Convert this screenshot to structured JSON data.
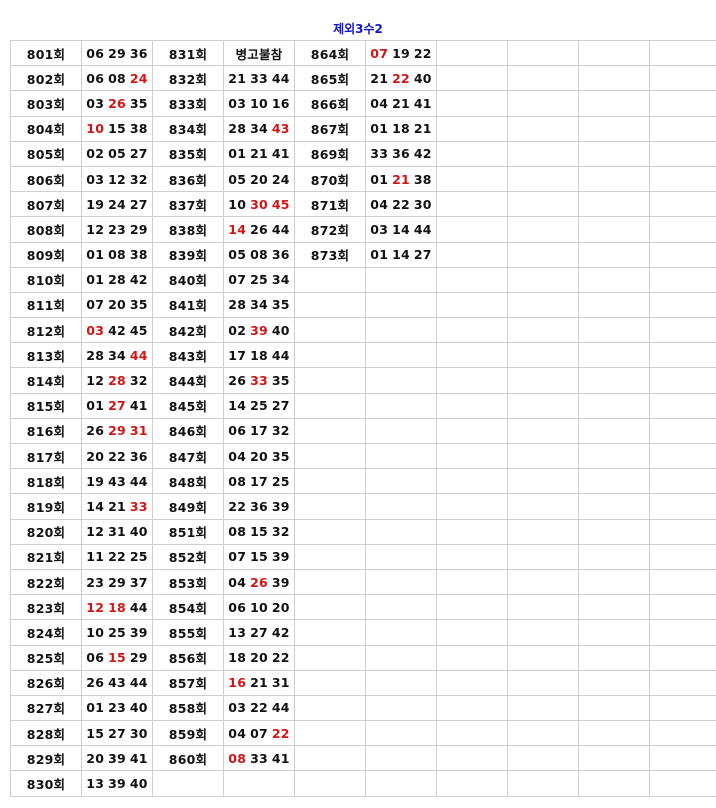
{
  "title": "제외3수2",
  "colors": {
    "highlight": "#d41414",
    "title": "#1515c8",
    "grid": "#cfcfcf"
  },
  "groups": [
    [
      {
        "round": "801회",
        "nums": [
          "06",
          "29",
          "36"
        ],
        "hot": []
      },
      {
        "round": "802회",
        "nums": [
          "06",
          "08",
          "24"
        ],
        "hot": [
          2
        ]
      },
      {
        "round": "803회",
        "nums": [
          "03",
          "26",
          "35"
        ],
        "hot": [
          1
        ]
      },
      {
        "round": "804회",
        "nums": [
          "10",
          "15",
          "38"
        ],
        "hot": [
          0
        ]
      },
      {
        "round": "805회",
        "nums": [
          "02",
          "05",
          "27"
        ],
        "hot": []
      },
      {
        "round": "806회",
        "nums": [
          "03",
          "12",
          "32"
        ],
        "hot": []
      },
      {
        "round": "807회",
        "nums": [
          "19",
          "24",
          "27"
        ],
        "hot": []
      },
      {
        "round": "808회",
        "nums": [
          "12",
          "23",
          "29"
        ],
        "hot": []
      },
      {
        "round": "809회",
        "nums": [
          "01",
          "08",
          "38"
        ],
        "hot": []
      },
      {
        "round": "810회",
        "nums": [
          "01",
          "28",
          "42"
        ],
        "hot": []
      },
      {
        "round": "811회",
        "nums": [
          "07",
          "20",
          "35"
        ],
        "hot": []
      },
      {
        "round": "812회",
        "nums": [
          "03",
          "42",
          "45"
        ],
        "hot": [
          0
        ]
      },
      {
        "round": "813회",
        "nums": [
          "28",
          "34",
          "44"
        ],
        "hot": [
          2
        ]
      },
      {
        "round": "814회",
        "nums": [
          "12",
          "28",
          "32"
        ],
        "hot": [
          1
        ]
      },
      {
        "round": "815회",
        "nums": [
          "01",
          "27",
          "41"
        ],
        "hot": [
          1
        ]
      },
      {
        "round": "816회",
        "nums": [
          "26",
          "29",
          "31"
        ],
        "hot": [
          1,
          2
        ]
      },
      {
        "round": "817회",
        "nums": [
          "20",
          "22",
          "36"
        ],
        "hot": []
      },
      {
        "round": "818회",
        "nums": [
          "19",
          "43",
          "44"
        ],
        "hot": []
      },
      {
        "round": "819회",
        "nums": [
          "14",
          "21",
          "33"
        ],
        "hot": [
          2
        ]
      },
      {
        "round": "820회",
        "nums": [
          "12",
          "31",
          "40"
        ],
        "hot": []
      },
      {
        "round": "821회",
        "nums": [
          "11",
          "22",
          "25"
        ],
        "hot": []
      },
      {
        "round": "822회",
        "nums": [
          "23",
          "29",
          "37"
        ],
        "hot": []
      },
      {
        "round": "823회",
        "nums": [
          "12",
          "18",
          "44"
        ],
        "hot": [
          0,
          1
        ]
      },
      {
        "round": "824회",
        "nums": [
          "10",
          "25",
          "39"
        ],
        "hot": []
      },
      {
        "round": "825회",
        "nums": [
          "06",
          "15",
          "29"
        ],
        "hot": [
          1
        ]
      },
      {
        "round": "826회",
        "nums": [
          "26",
          "43",
          "44"
        ],
        "hot": []
      },
      {
        "round": "827회",
        "nums": [
          "01",
          "23",
          "40"
        ],
        "hot": []
      },
      {
        "round": "828회",
        "nums": [
          "15",
          "27",
          "30"
        ],
        "hot": []
      },
      {
        "round": "829회",
        "nums": [
          "20",
          "39",
          "41"
        ],
        "hot": []
      },
      {
        "round": "830회",
        "nums": [
          "13",
          "39",
          "40"
        ],
        "hot": []
      }
    ],
    [
      {
        "round": "831회",
        "nums": [
          "병고불참"
        ],
        "hot": []
      },
      {
        "round": "832회",
        "nums": [
          "21",
          "33",
          "44"
        ],
        "hot": []
      },
      {
        "round": "833회",
        "nums": [
          "03",
          "10",
          "16"
        ],
        "hot": []
      },
      {
        "round": "834회",
        "nums": [
          "28",
          "34",
          "43"
        ],
        "hot": [
          2
        ]
      },
      {
        "round": "835회",
        "nums": [
          "01",
          "21",
          "41"
        ],
        "hot": []
      },
      {
        "round": "836회",
        "nums": [
          "05",
          "20",
          "24"
        ],
        "hot": []
      },
      {
        "round": "837회",
        "nums": [
          "10",
          "30",
          "45"
        ],
        "hot": [
          1,
          2
        ]
      },
      {
        "round": "838회",
        "nums": [
          "14",
          "26",
          "44"
        ],
        "hot": [
          0
        ]
      },
      {
        "round": "839회",
        "nums": [
          "05",
          "08",
          "36"
        ],
        "hot": []
      },
      {
        "round": "840회",
        "nums": [
          "07",
          "25",
          "34"
        ],
        "hot": []
      },
      {
        "round": "841회",
        "nums": [
          "28",
          "34",
          "35"
        ],
        "hot": []
      },
      {
        "round": "842회",
        "nums": [
          "02",
          "39",
          "40"
        ],
        "hot": [
          1
        ]
      },
      {
        "round": "843회",
        "nums": [
          "17",
          "18",
          "44"
        ],
        "hot": []
      },
      {
        "round": "844회",
        "nums": [
          "26",
          "33",
          "35"
        ],
        "hot": [
          1
        ]
      },
      {
        "round": "845회",
        "nums": [
          "14",
          "25",
          "27"
        ],
        "hot": []
      },
      {
        "round": "846회",
        "nums": [
          "06",
          "17",
          "32"
        ],
        "hot": []
      },
      {
        "round": "847회",
        "nums": [
          "04",
          "20",
          "35"
        ],
        "hot": []
      },
      {
        "round": "848회",
        "nums": [
          "08",
          "17",
          "25"
        ],
        "hot": []
      },
      {
        "round": "849회",
        "nums": [
          "22",
          "36",
          "39"
        ],
        "hot": []
      },
      {
        "round": "851회",
        "nums": [
          "08",
          "15",
          "32"
        ],
        "hot": []
      },
      {
        "round": "852회",
        "nums": [
          "07",
          "15",
          "39"
        ],
        "hot": []
      },
      {
        "round": "853회",
        "nums": [
          "04",
          "26",
          "39"
        ],
        "hot": [
          1
        ]
      },
      {
        "round": "854회",
        "nums": [
          "06",
          "10",
          "20"
        ],
        "hot": []
      },
      {
        "round": "855회",
        "nums": [
          "13",
          "27",
          "42"
        ],
        "hot": []
      },
      {
        "round": "856회",
        "nums": [
          "18",
          "20",
          "22"
        ],
        "hot": []
      },
      {
        "round": "857회",
        "nums": [
          "16",
          "21",
          "31"
        ],
        "hot": [
          0
        ]
      },
      {
        "round": "858회",
        "nums": [
          "03",
          "22",
          "44"
        ],
        "hot": []
      },
      {
        "round": "859회",
        "nums": [
          "04",
          "07",
          "22"
        ],
        "hot": [
          2
        ]
      },
      {
        "round": "860회",
        "nums": [
          "08",
          "33",
          "41"
        ],
        "hot": [
          0
        ]
      }
    ],
    [
      {
        "round": "864회",
        "nums": [
          "07",
          "19",
          "22"
        ],
        "hot": [
          0
        ]
      },
      {
        "round": "865회",
        "nums": [
          "21",
          "22",
          "40"
        ],
        "hot": [
          1
        ]
      },
      {
        "round": "866회",
        "nums": [
          "04",
          "21",
          "41"
        ],
        "hot": []
      },
      {
        "round": "867회",
        "nums": [
          "01",
          "18",
          "21"
        ],
        "hot": []
      },
      {
        "round": "869회",
        "nums": [
          "33",
          "36",
          "42"
        ],
        "hot": []
      },
      {
        "round": "870회",
        "nums": [
          "01",
          "21",
          "38"
        ],
        "hot": [
          1
        ]
      },
      {
        "round": "871회",
        "nums": [
          "04",
          "22",
          "30"
        ],
        "hot": []
      },
      {
        "round": "872회",
        "nums": [
          "03",
          "14",
          "44"
        ],
        "hot": []
      },
      {
        "round": "873회",
        "nums": [
          "01",
          "14",
          "27"
        ],
        "hot": []
      }
    ],
    [],
    []
  ]
}
